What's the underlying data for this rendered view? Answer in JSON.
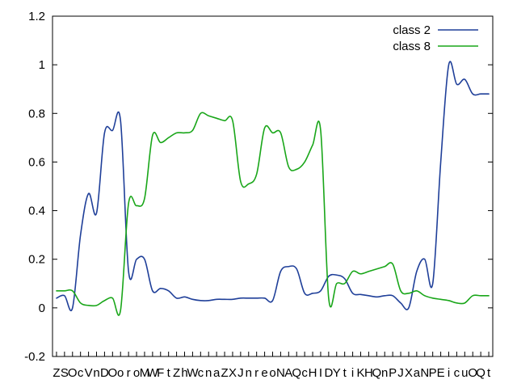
{
  "chart_data": {
    "type": "line",
    "title": "",
    "xlabel": "",
    "ylabel": "",
    "ylim": [
      -0.2,
      1.2
    ],
    "yticks": [
      "-0.2",
      "0",
      "0.2",
      "0.4",
      "0.6",
      "0.8",
      "1",
      "1.2"
    ],
    "grid": false,
    "legend_position": "top-right",
    "categories": [
      "Z",
      "S",
      "O",
      "c",
      "V",
      "n",
      "D",
      "O",
      "o",
      "r",
      "o",
      "M",
      "W",
      "F",
      "t",
      "Z",
      "h",
      "W",
      "c",
      "n",
      "a",
      "Z",
      "X",
      "J",
      "n",
      "r",
      "e",
      "o",
      "N",
      "A",
      "Q",
      "c",
      "H",
      "I",
      "D",
      "Y",
      "t",
      "i",
      "K",
      "H",
      "Q",
      "n",
      "P",
      "J",
      "X",
      "a",
      "N",
      "P",
      "E",
      "i",
      "c",
      "u",
      "O",
      "Q",
      "t"
    ],
    "series": [
      {
        "name": "class 2",
        "color": "#1f3f99",
        "values": [
          0.04,
          0.05,
          0.0,
          0.3,
          0.47,
          0.39,
          0.72,
          0.73,
          0.77,
          0.15,
          0.2,
          0.2,
          0.07,
          0.08,
          0.07,
          0.04,
          0.045,
          0.035,
          0.03,
          0.03,
          0.035,
          0.035,
          0.035,
          0.04,
          0.04,
          0.04,
          0.04,
          0.03,
          0.15,
          0.17,
          0.16,
          0.06,
          0.06,
          0.07,
          0.13,
          0.135,
          0.12,
          0.06,
          0.055,
          0.05,
          0.045,
          0.05,
          0.05,
          0.02,
          0.0,
          0.15,
          0.2,
          0.1,
          0.6,
          1.0,
          0.92,
          0.94,
          0.88,
          0.88,
          0.88
        ]
      },
      {
        "name": "class 8",
        "color": "#19a619",
        "values": [
          0.07,
          0.07,
          0.07,
          0.02,
          0.01,
          0.01,
          0.03,
          0.04,
          -0.01,
          0.43,
          0.42,
          0.45,
          0.71,
          0.68,
          0.7,
          0.72,
          0.72,
          0.73,
          0.8,
          0.79,
          0.78,
          0.77,
          0.77,
          0.52,
          0.51,
          0.55,
          0.74,
          0.72,
          0.72,
          0.58,
          0.57,
          0.6,
          0.67,
          0.73,
          0.04,
          0.1,
          0.1,
          0.15,
          0.14,
          0.15,
          0.16,
          0.17,
          0.18,
          0.07,
          0.06,
          0.07,
          0.05,
          0.04,
          0.035,
          0.03,
          0.02,
          0.02,
          0.05,
          0.05,
          0.05
        ]
      }
    ]
  }
}
